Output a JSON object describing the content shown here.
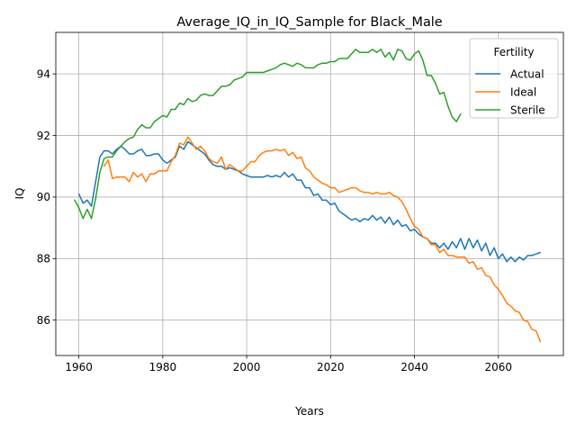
{
  "chart_data": {
    "type": "line",
    "title": "Average_IQ_in_IQ_Sample for Black_Male",
    "xlabel": "Years",
    "ylabel": "IQ",
    "xlim": [
      1954.5,
      2075.5
    ],
    "ylim": [
      84.85,
      95.35
    ],
    "xticks": [
      1960,
      1980,
      2000,
      2020,
      2040,
      2060
    ],
    "yticks": [
      86,
      88,
      90,
      92,
      94
    ],
    "grid": true,
    "legend": {
      "title": "Fertility",
      "position": "top-right"
    },
    "series": [
      {
        "name": "Actual",
        "color": "#1f77b4",
        "points": [
          [
            1960,
            90.1
          ],
          [
            1961,
            89.8
          ],
          [
            1962,
            89.9
          ],
          [
            1963,
            89.7
          ],
          [
            1964,
            90.5
          ],
          [
            1965,
            91.3
          ],
          [
            1966,
            91.5
          ],
          [
            1967,
            91.5
          ],
          [
            1968,
            91.4
          ],
          [
            1969,
            91.55
          ],
          [
            1970,
            91.65
          ],
          [
            1971,
            91.55
          ],
          [
            1972,
            91.4
          ],
          [
            1973,
            91.4
          ],
          [
            1974,
            91.5
          ],
          [
            1975,
            91.55
          ],
          [
            1976,
            91.35
          ],
          [
            1977,
            91.35
          ],
          [
            1978,
            91.4
          ],
          [
            1979,
            91.4
          ],
          [
            1980,
            91.2
          ],
          [
            1981,
            91.1
          ],
          [
            1982,
            91.2
          ],
          [
            1983,
            91.3
          ],
          [
            1984,
            91.65
          ],
          [
            1985,
            91.55
          ],
          [
            1986,
            91.8
          ],
          [
            1987,
            91.7
          ],
          [
            1988,
            91.6
          ],
          [
            1989,
            91.5
          ],
          [
            1990,
            91.4
          ],
          [
            1991,
            91.2
          ],
          [
            1992,
            91.05
          ],
          [
            1993,
            91.0
          ],
          [
            1994,
            91.0
          ],
          [
            1995,
            90.9
          ],
          [
            1996,
            90.95
          ],
          [
            1997,
            90.9
          ],
          [
            1998,
            90.85
          ],
          [
            1999,
            90.75
          ],
          [
            2000,
            90.7
          ],
          [
            2001,
            90.65
          ],
          [
            2002,
            90.65
          ],
          [
            2003,
            90.65
          ],
          [
            2004,
            90.65
          ],
          [
            2005,
            90.7
          ],
          [
            2006,
            90.65
          ],
          [
            2007,
            90.7
          ],
          [
            2008,
            90.65
          ],
          [
            2009,
            90.8
          ],
          [
            2010,
            90.65
          ],
          [
            2011,
            90.75
          ],
          [
            2012,
            90.55
          ],
          [
            2013,
            90.55
          ],
          [
            2014,
            90.3
          ],
          [
            2015,
            90.3
          ],
          [
            2016,
            90.05
          ],
          [
            2017,
            90.1
          ],
          [
            2018,
            89.9
          ],
          [
            2019,
            89.9
          ],
          [
            2020,
            89.75
          ],
          [
            2021,
            89.8
          ],
          [
            2022,
            89.55
          ],
          [
            2023,
            89.45
          ],
          [
            2024,
            89.35
          ],
          [
            2025,
            89.25
          ],
          [
            2026,
            89.3
          ],
          [
            2027,
            89.2
          ],
          [
            2028,
            89.3
          ],
          [
            2029,
            89.25
          ],
          [
            2030,
            89.4
          ],
          [
            2031,
            89.25
          ],
          [
            2032,
            89.35
          ],
          [
            2033,
            89.15
          ],
          [
            2034,
            89.35
          ],
          [
            2035,
            89.1
          ],
          [
            2036,
            89.25
          ],
          [
            2037,
            89.05
          ],
          [
            2038,
            89.1
          ],
          [
            2039,
            88.9
          ],
          [
            2040,
            88.95
          ],
          [
            2041,
            88.8
          ],
          [
            2042,
            88.7
          ],
          [
            2043,
            88.65
          ],
          [
            2044,
            88.5
          ],
          [
            2045,
            88.5
          ],
          [
            2046,
            88.35
          ],
          [
            2047,
            88.5
          ],
          [
            2048,
            88.3
          ],
          [
            2049,
            88.55
          ],
          [
            2050,
            88.35
          ],
          [
            2051,
            88.65
          ],
          [
            2052,
            88.3
          ],
          [
            2053,
            88.65
          ],
          [
            2054,
            88.35
          ],
          [
            2055,
            88.6
          ],
          [
            2056,
            88.25
          ],
          [
            2057,
            88.5
          ],
          [
            2058,
            88.1
          ],
          [
            2059,
            88.35
          ],
          [
            2060,
            88.0
          ],
          [
            2061,
            88.15
          ],
          [
            2062,
            87.9
          ],
          [
            2063,
            88.05
          ],
          [
            2064,
            87.9
          ],
          [
            2065,
            88.05
          ],
          [
            2066,
            87.95
          ],
          [
            2067,
            88.1
          ],
          [
            2068,
            88.1
          ],
          [
            2069,
            88.15
          ],
          [
            2070,
            88.2
          ]
        ]
      },
      {
        "name": "Ideal",
        "color": "#ff7f0e",
        "points": [
          [
            1966,
            91.0
          ],
          [
            1967,
            91.2
          ],
          [
            1968,
            90.6
          ],
          [
            1969,
            90.65
          ],
          [
            1970,
            90.65
          ],
          [
            1971,
            90.65
          ],
          [
            1972,
            90.5
          ],
          [
            1973,
            90.8
          ],
          [
            1974,
            90.65
          ],
          [
            1975,
            90.75
          ],
          [
            1976,
            90.5
          ],
          [
            1977,
            90.75
          ],
          [
            1978,
            90.75
          ],
          [
            1979,
            90.85
          ],
          [
            1980,
            90.85
          ],
          [
            1981,
            90.85
          ],
          [
            1982,
            91.15
          ],
          [
            1983,
            91.35
          ],
          [
            1984,
            91.75
          ],
          [
            1985,
            91.7
          ],
          [
            1986,
            91.95
          ],
          [
            1987,
            91.75
          ],
          [
            1988,
            91.55
          ],
          [
            1989,
            91.65
          ],
          [
            1990,
            91.5
          ],
          [
            1991,
            91.25
          ],
          [
            1992,
            91.15
          ],
          [
            1993,
            91.1
          ],
          [
            1994,
            91.3
          ],
          [
            1995,
            90.9
          ],
          [
            1996,
            91.05
          ],
          [
            1997,
            90.95
          ],
          [
            1998,
            90.85
          ],
          [
            1999,
            90.85
          ],
          [
            2000,
            91.0
          ],
          [
            2001,
            91.15
          ],
          [
            2002,
            91.15
          ],
          [
            2003,
            91.35
          ],
          [
            2004,
            91.45
          ],
          [
            2005,
            91.5
          ],
          [
            2006,
            91.5
          ],
          [
            2007,
            91.55
          ],
          [
            2008,
            91.5
          ],
          [
            2009,
            91.55
          ],
          [
            2010,
            91.35
          ],
          [
            2011,
            91.45
          ],
          [
            2012,
            91.25
          ],
          [
            2013,
            91.3
          ],
          [
            2014,
            90.95
          ],
          [
            2015,
            90.85
          ],
          [
            2016,
            90.65
          ],
          [
            2017,
            90.55
          ],
          [
            2018,
            90.45
          ],
          [
            2019,
            90.4
          ],
          [
            2020,
            90.3
          ],
          [
            2021,
            90.3
          ],
          [
            2022,
            90.15
          ],
          [
            2023,
            90.2
          ],
          [
            2024,
            90.25
          ],
          [
            2025,
            90.3
          ],
          [
            2026,
            90.3
          ],
          [
            2027,
            90.2
          ],
          [
            2028,
            90.15
          ],
          [
            2029,
            90.15
          ],
          [
            2030,
            90.1
          ],
          [
            2031,
            90.15
          ],
          [
            2032,
            90.1
          ],
          [
            2033,
            90.1
          ],
          [
            2034,
            90.15
          ],
          [
            2035,
            90.05
          ],
          [
            2036,
            90.0
          ],
          [
            2037,
            89.85
          ],
          [
            2038,
            89.6
          ],
          [
            2039,
            89.3
          ],
          [
            2040,
            89.05
          ],
          [
            2041,
            88.95
          ],
          [
            2042,
            88.7
          ],
          [
            2043,
            88.65
          ],
          [
            2044,
            88.45
          ],
          [
            2045,
            88.45
          ],
          [
            2046,
            88.2
          ],
          [
            2047,
            88.3
          ],
          [
            2048,
            88.1
          ],
          [
            2049,
            88.1
          ],
          [
            2050,
            88.05
          ],
          [
            2051,
            88.05
          ],
          [
            2052,
            88.05
          ],
          [
            2053,
            87.85
          ],
          [
            2054,
            87.9
          ],
          [
            2055,
            87.65
          ],
          [
            2056,
            87.7
          ],
          [
            2057,
            87.45
          ],
          [
            2058,
            87.4
          ],
          [
            2059,
            87.15
          ],
          [
            2060,
            87.0
          ],
          [
            2061,
            86.8
          ],
          [
            2062,
            86.55
          ],
          [
            2063,
            86.45
          ],
          [
            2064,
            86.3
          ],
          [
            2065,
            86.25
          ],
          [
            2066,
            86.0
          ],
          [
            2067,
            85.95
          ],
          [
            2068,
            85.7
          ],
          [
            2069,
            85.65
          ],
          [
            2070,
            85.3
          ]
        ]
      },
      {
        "name": "Sterile",
        "color": "#2ca02c",
        "points": [
          [
            1959,
            89.9
          ],
          [
            1960,
            89.65
          ],
          [
            1961,
            89.3
          ],
          [
            1962,
            89.6
          ],
          [
            1963,
            89.3
          ],
          [
            1964,
            89.95
          ],
          [
            1965,
            90.8
          ],
          [
            1966,
            91.25
          ],
          [
            1967,
            91.3
          ],
          [
            1968,
            91.3
          ],
          [
            1969,
            91.5
          ],
          [
            1970,
            91.65
          ],
          [
            1971,
            91.8
          ],
          [
            1972,
            91.9
          ],
          [
            1973,
            91.95
          ],
          [
            1974,
            92.2
          ],
          [
            1975,
            92.35
          ],
          [
            1976,
            92.25
          ],
          [
            1977,
            92.25
          ],
          [
            1978,
            92.45
          ],
          [
            1979,
            92.55
          ],
          [
            1980,
            92.65
          ],
          [
            1981,
            92.6
          ],
          [
            1982,
            92.85
          ],
          [
            1983,
            92.85
          ],
          [
            1984,
            93.05
          ],
          [
            1985,
            93.0
          ],
          [
            1986,
            93.2
          ],
          [
            1987,
            93.1
          ],
          [
            1988,
            93.15
          ],
          [
            1989,
            93.3
          ],
          [
            1990,
            93.35
          ],
          [
            1991,
            93.3
          ],
          [
            1992,
            93.3
          ],
          [
            1993,
            93.45
          ],
          [
            1994,
            93.6
          ],
          [
            1995,
            93.6
          ],
          [
            1996,
            93.65
          ],
          [
            1997,
            93.8
          ],
          [
            1998,
            93.85
          ],
          [
            1999,
            93.9
          ],
          [
            2000,
            94.05
          ],
          [
            2001,
            94.05
          ],
          [
            2002,
            94.05
          ],
          [
            2003,
            94.05
          ],
          [
            2004,
            94.05
          ],
          [
            2005,
            94.1
          ],
          [
            2006,
            94.15
          ],
          [
            2007,
            94.2
          ],
          [
            2008,
            94.3
          ],
          [
            2009,
            94.35
          ],
          [
            2010,
            94.3
          ],
          [
            2011,
            94.25
          ],
          [
            2012,
            94.35
          ],
          [
            2013,
            94.3
          ],
          [
            2014,
            94.2
          ],
          [
            2015,
            94.2
          ],
          [
            2016,
            94.2
          ],
          [
            2017,
            94.3
          ],
          [
            2018,
            94.35
          ],
          [
            2019,
            94.35
          ],
          [
            2020,
            94.4
          ],
          [
            2021,
            94.4
          ],
          [
            2022,
            94.5
          ],
          [
            2023,
            94.5
          ],
          [
            2024,
            94.5
          ],
          [
            2025,
            94.65
          ],
          [
            2026,
            94.8
          ],
          [
            2027,
            94.7
          ],
          [
            2028,
            94.7
          ],
          [
            2029,
            94.7
          ],
          [
            2030,
            94.8
          ],
          [
            2031,
            94.7
          ],
          [
            2032,
            94.8
          ],
          [
            2033,
            94.55
          ],
          [
            2034,
            94.7
          ],
          [
            2035,
            94.45
          ],
          [
            2036,
            94.8
          ],
          [
            2037,
            94.75
          ],
          [
            2038,
            94.5
          ],
          [
            2039,
            94.45
          ],
          [
            2040,
            94.65
          ],
          [
            2041,
            94.75
          ],
          [
            2042,
            94.45
          ],
          [
            2043,
            93.95
          ],
          [
            2044,
            93.95
          ],
          [
            2045,
            93.7
          ],
          [
            2046,
            93.35
          ],
          [
            2047,
            93.4
          ],
          [
            2048,
            92.95
          ],
          [
            2049,
            92.6
          ],
          [
            2050,
            92.45
          ],
          [
            2051,
            92.7
          ]
        ]
      }
    ]
  }
}
